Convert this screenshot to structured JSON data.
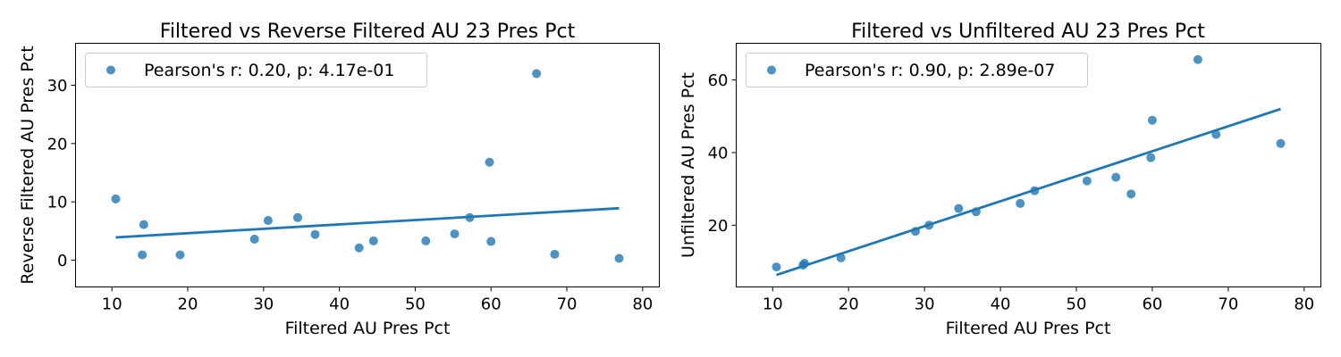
{
  "colors": {
    "series": "#1f77b4",
    "axis": "#000000",
    "legend_border": "#cccccc"
  },
  "chart_data": [
    {
      "type": "scatter",
      "title": "Filtered vs Reverse Filtered AU 23 Pres Pct",
      "xlabel": "Filtered AU Pres Pct",
      "ylabel": "Reverse Filtered AU Pres Pct",
      "xlim": [
        5.2,
        82.2
      ],
      "ylim": [
        -4.6,
        37.2
      ],
      "xticks": [
        10,
        20,
        30,
        40,
        50,
        60,
        70,
        80
      ],
      "yticks": [
        0,
        10,
        20,
        30
      ],
      "grid": false,
      "legend_position": "top-left",
      "legend_label": "Pearson's r: 0.20, p: 4.17e-01",
      "series": [
        {
          "x": [
            10.5,
            14.0,
            14.2,
            19.0,
            28.8,
            30.6,
            34.5,
            36.8,
            42.6,
            44.5,
            51.4,
            55.2,
            57.2,
            59.8,
            60.0,
            66.0,
            68.4,
            76.9
          ],
          "y": [
            10.5,
            0.9,
            6.1,
            0.9,
            3.6,
            6.8,
            7.3,
            4.4,
            2.1,
            3.3,
            3.3,
            4.5,
            7.3,
            16.8,
            3.2,
            32.0,
            1.0,
            0.3
          ]
        }
      ],
      "fit_line": {
        "x": [
          10.5,
          76.9
        ],
        "y": [
          3.9,
          8.9
        ]
      }
    },
    {
      "type": "scatter",
      "title": "Filtered vs Unfiltered AU 23 Pres Pct",
      "xlabel": "Filtered AU Pres Pct",
      "ylabel": "Unfiltered AU Pres Pct",
      "xlim": [
        5.2,
        82.2
      ],
      "ylim": [
        3.0,
        70.1
      ],
      "xticks": [
        10,
        20,
        30,
        40,
        50,
        60,
        70,
        80
      ],
      "yticks": [
        20,
        40,
        60
      ],
      "grid": false,
      "legend_position": "top-left",
      "legend_label": "Pearson's r: 0.90, p: 2.89e-07",
      "series": [
        {
          "x": [
            10.5,
            14.0,
            14.2,
            19.0,
            28.8,
            30.6,
            34.5,
            36.8,
            42.6,
            44.5,
            51.4,
            55.2,
            57.2,
            59.8,
            60.0,
            66.0,
            68.4,
            76.9
          ],
          "y": [
            8.5,
            9.0,
            9.5,
            11.0,
            18.3,
            20.0,
            24.6,
            23.7,
            26.0,
            29.5,
            32.2,
            33.2,
            28.6,
            38.6,
            48.9,
            65.6,
            45.0,
            42.5
          ]
        }
      ],
      "fit_line": {
        "x": [
          10.5,
          76.9
        ],
        "y": [
          6.3,
          52.0
        ]
      }
    }
  ]
}
